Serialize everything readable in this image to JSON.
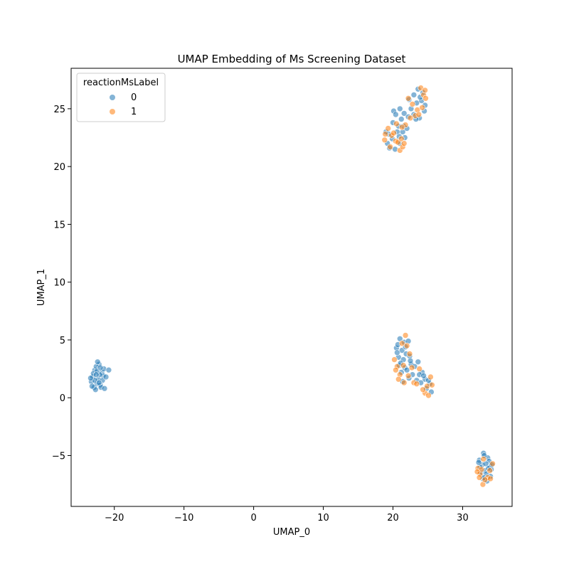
{
  "chart_data": {
    "type": "scatter",
    "title": "UMAP Embedding of Ms Screening Dataset",
    "xlabel": "UMAP_0",
    "ylabel": "UMAP_1",
    "xlim": [
      -26.2,
      37.1
    ],
    "ylim": [
      -9.4,
      28.5
    ],
    "xticks": [
      -20,
      -10,
      0,
      10,
      20,
      30
    ],
    "yticks": [
      -5,
      0,
      5,
      10,
      15,
      20,
      25
    ],
    "xtick_labels": [
      "−20",
      "−10",
      "0",
      "10",
      "20",
      "30"
    ],
    "ytick_labels": [
      "−5",
      "0",
      "5",
      "10",
      "15",
      "20",
      "25"
    ],
    "legend": {
      "title": "reactionMsLabel",
      "placement": "upper-left",
      "entries": [
        "0",
        "1"
      ]
    },
    "grid": false,
    "series": [
      {
        "name": "0",
        "color": "#1f77b4",
        "points": [
          [
            -23.1,
            1.8
          ],
          [
            -22.8,
            2.4
          ],
          [
            -22.5,
            1.2
          ],
          [
            -22.2,
            2.9
          ],
          [
            -21.8,
            2.2
          ],
          [
            -22.9,
            0.9
          ],
          [
            -22.3,
            1.6
          ],
          [
            -21.6,
            1.9
          ],
          [
            -23.3,
            1.4
          ],
          [
            -22.6,
            2.7
          ],
          [
            -22.0,
            1.1
          ],
          [
            -21.5,
            2.5
          ],
          [
            -22.4,
            3.1
          ],
          [
            -22.7,
            0.7
          ],
          [
            -21.9,
            0.9
          ],
          [
            -23.0,
            2.1
          ],
          [
            -22.1,
            2.0
          ],
          [
            -21.7,
            1.5
          ],
          [
            -22.5,
            2.3
          ],
          [
            -23.2,
            1.0
          ],
          [
            -21.4,
            0.8
          ],
          [
            -22.8,
            1.5
          ],
          [
            -22.2,
            1.3
          ],
          [
            -21.2,
            1.8
          ],
          [
            -20.8,
            2.4
          ],
          [
            -22.6,
            2.0
          ],
          [
            -23.4,
            1.7
          ],
          [
            -22.0,
            2.6
          ],
          [
            33.0,
            -4.8
          ],
          [
            33.6,
            -5.2
          ],
          [
            32.4,
            -5.4
          ],
          [
            33.9,
            -5.9
          ],
          [
            33.2,
            -6.3
          ],
          [
            32.8,
            -5.8
          ],
          [
            34.0,
            -6.8
          ],
          [
            33.5,
            -7.2
          ],
          [
            32.6,
            -6.5
          ],
          [
            33.8,
            -5.5
          ],
          [
            33.1,
            -5.0
          ],
          [
            32.5,
            -6.0
          ],
          [
            33.4,
            -6.6
          ],
          [
            34.1,
            -6.2
          ],
          [
            32.9,
            -7.0
          ],
          [
            33.7,
            -6.1
          ],
          [
            32.3,
            -5.6
          ],
          [
            33.3,
            -5.7
          ],
          [
            34.2,
            -5.8
          ],
          [
            33.0,
            -6.9
          ],
          [
            21.0,
            5.1
          ],
          [
            21.6,
            4.8
          ],
          [
            22.2,
            4.9
          ],
          [
            20.5,
            4.3
          ],
          [
            21.3,
            4.1
          ],
          [
            21.9,
            3.8
          ],
          [
            20.8,
            3.5
          ],
          [
            21.5,
            3.3
          ],
          [
            22.4,
            3.6
          ],
          [
            20.9,
            2.8
          ],
          [
            21.7,
            2.6
          ],
          [
            22.6,
            2.9
          ],
          [
            21.2,
            2.2
          ],
          [
            22.0,
            2.4
          ],
          [
            23.1,
            2.7
          ],
          [
            23.6,
            3.1
          ],
          [
            24.2,
            2.2
          ],
          [
            23.8,
            2.0
          ],
          [
            24.6,
            1.6
          ],
          [
            25.3,
            1.2
          ],
          [
            24.8,
            0.8
          ],
          [
            25.5,
            0.5
          ],
          [
            24.4,
            1.9
          ],
          [
            21.4,
            1.4
          ],
          [
            22.8,
            2.0
          ],
          [
            20.6,
            3.9
          ],
          [
            21.1,
            3.0
          ],
          [
            22.3,
            1.7
          ],
          [
            23.4,
            1.5
          ],
          [
            20.7,
            4.6
          ],
          [
            21.8,
            4.4
          ],
          [
            22.5,
            3.2
          ],
          [
            24.0,
            1.3
          ],
          [
            25.1,
            1.5
          ],
          [
            20.1,
            24.8
          ],
          [
            21.0,
            25.0
          ],
          [
            21.6,
            24.6
          ],
          [
            22.3,
            25.8
          ],
          [
            23.0,
            26.2
          ],
          [
            23.6,
            26.7
          ],
          [
            24.3,
            26.4
          ],
          [
            24.5,
            24.8
          ],
          [
            23.8,
            24.2
          ],
          [
            23.0,
            24.5
          ],
          [
            22.2,
            24.3
          ],
          [
            21.5,
            23.5
          ],
          [
            20.6,
            23.0
          ],
          [
            19.9,
            22.4
          ],
          [
            19.2,
            22.0
          ],
          [
            19.5,
            21.6
          ],
          [
            20.3,
            21.5
          ],
          [
            21.0,
            22.0
          ],
          [
            21.7,
            22.5
          ],
          [
            20.8,
            23.5
          ],
          [
            19.4,
            22.8
          ],
          [
            20.0,
            23.8
          ],
          [
            22.6,
            25.0
          ],
          [
            23.4,
            25.5
          ],
          [
            24.1,
            25.7
          ],
          [
            24.6,
            25.3
          ],
          [
            23.3,
            24.1
          ],
          [
            20.4,
            24.5
          ],
          [
            21.4,
            23.0
          ],
          [
            19.0,
            23.0
          ],
          [
            22.0,
            23.3
          ],
          [
            23.9,
            26.0
          ],
          [
            21.2,
            24.1
          ],
          [
            20.9,
            22.6
          ]
        ]
      },
      {
        "name": "1",
        "color": "#ff7f0e",
        "points": [
          [
            32.2,
            -6.1
          ],
          [
            32.5,
            -6.6
          ],
          [
            32.9,
            -7.5
          ],
          [
            33.6,
            -6.9
          ],
          [
            34.3,
            -5.7
          ],
          [
            32.7,
            -6.2
          ],
          [
            33.2,
            -7.1
          ],
          [
            32.1,
            -6.4
          ],
          [
            33.9,
            -6.3
          ],
          [
            32.4,
            -6.9
          ],
          [
            33.0,
            -5.3
          ],
          [
            34.0,
            -7.0
          ],
          [
            20.2,
            3.3
          ],
          [
            20.6,
            2.7
          ],
          [
            21.0,
            2.0
          ],
          [
            21.5,
            2.8
          ],
          [
            21.8,
            5.4
          ],
          [
            22.0,
            4.5
          ],
          [
            21.3,
            4.7
          ],
          [
            22.4,
            3.8
          ],
          [
            23.0,
            1.3
          ],
          [
            23.4,
            1.2
          ],
          [
            24.6,
            0.4
          ],
          [
            25.1,
            0.2
          ],
          [
            25.4,
            1.8
          ],
          [
            24.9,
            1.0
          ],
          [
            25.6,
            1.1
          ],
          [
            22.7,
            2.6
          ],
          [
            21.6,
            1.3
          ],
          [
            20.8,
            1.6
          ],
          [
            23.8,
            2.5
          ],
          [
            22.2,
            1.9
          ],
          [
            24.3,
            0.7
          ],
          [
            20.4,
            2.4
          ],
          [
            18.8,
            22.3
          ],
          [
            19.3,
            23.3
          ],
          [
            19.8,
            22.7
          ],
          [
            20.4,
            22.2
          ],
          [
            21.0,
            21.4
          ],
          [
            21.4,
            21.7
          ],
          [
            20.7,
            22.1
          ],
          [
            21.2,
            22.4
          ],
          [
            21.6,
            22.0
          ],
          [
            19.6,
            21.7
          ],
          [
            20.1,
            22.9
          ],
          [
            21.8,
            23.6
          ],
          [
            22.2,
            25.9
          ],
          [
            22.8,
            25.4
          ],
          [
            23.5,
            24.9
          ],
          [
            24.0,
            26.8
          ],
          [
            24.4,
            26.2
          ],
          [
            24.7,
            25.9
          ],
          [
            23.2,
            24.4
          ],
          [
            22.5,
            24.2
          ],
          [
            21.3,
            23.4
          ],
          [
            20.5,
            23.7
          ],
          [
            18.9,
            22.8
          ],
          [
            24.2,
            25.1
          ],
          [
            23.7,
            24.5
          ],
          [
            24.6,
            26.6
          ]
        ]
      }
    ]
  }
}
